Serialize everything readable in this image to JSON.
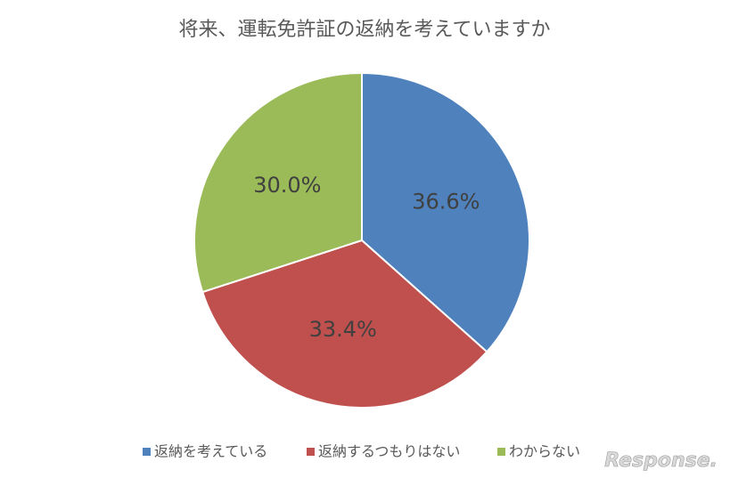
{
  "chart_data": {
    "type": "pie",
    "title": "将来、運転免許証の返納を考えていますか",
    "categories": [
      "返納を考えている",
      "返納するつもりはない",
      "わからない"
    ],
    "values": [
      36.6,
      33.4,
      30.0
    ],
    "value_labels": [
      "36.6%",
      "33.4%",
      "30.0%"
    ],
    "colors": [
      "#4f81bd",
      "#c0504d",
      "#9bbb59"
    ],
    "legend": "bottom",
    "watermark": "Response."
  }
}
